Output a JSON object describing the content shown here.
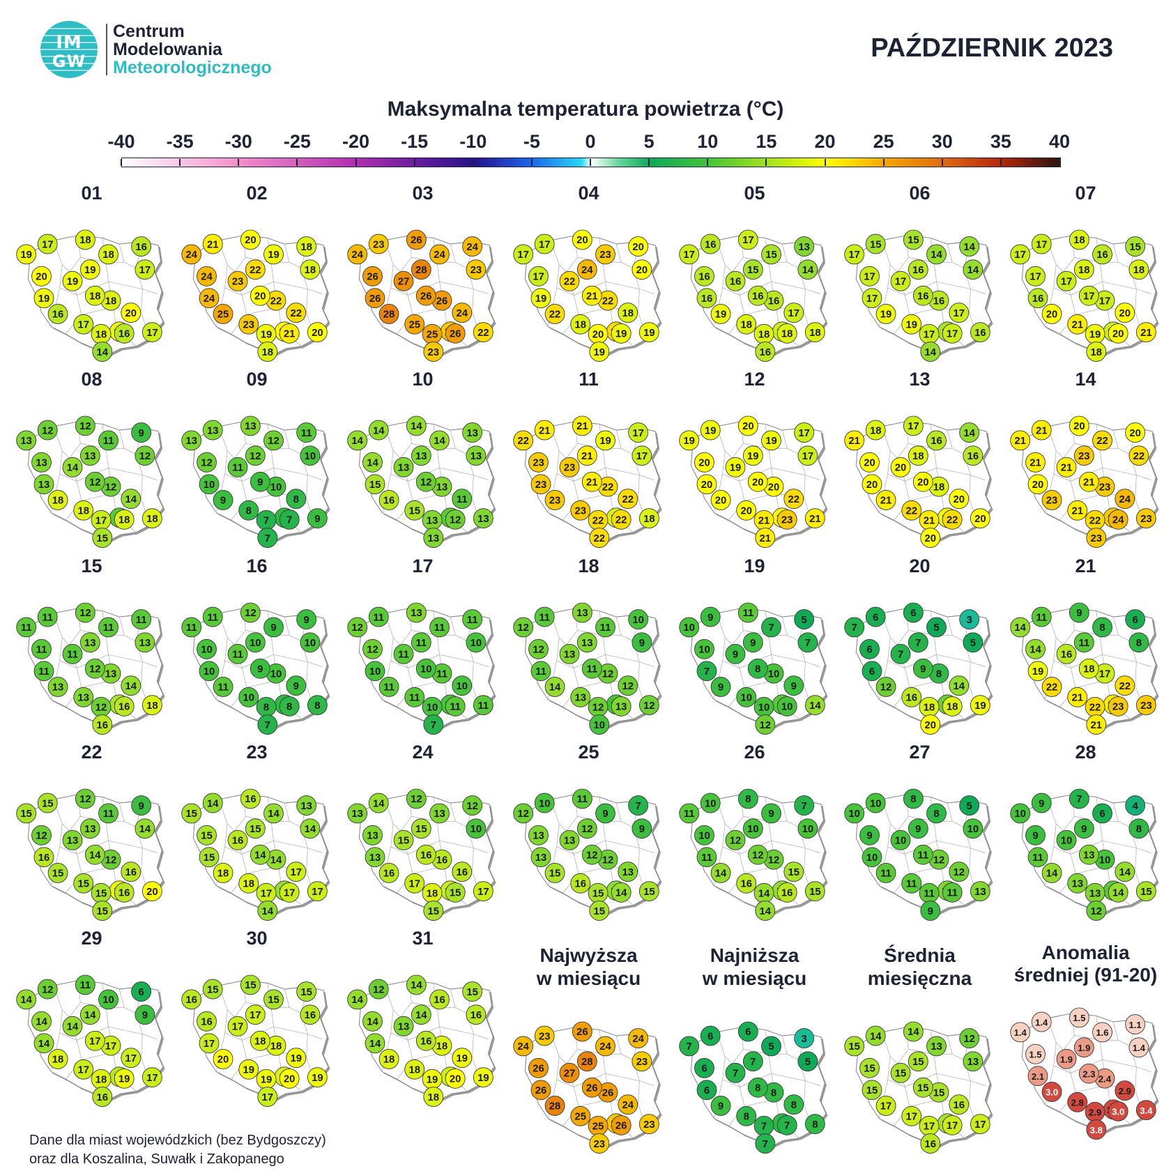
{
  "header": {
    "logo_text_top": "IM",
    "logo_text_bottom": "GW",
    "org_line1": "Centrum",
    "org_line2": "Modelowania",
    "org_line3": "Meteorologicznego",
    "month_title": "PAŹDZIERNIK 2023"
  },
  "scale": {
    "title": "Maksymalna temperatura powietrza (°C)",
    "ticks": [
      "-40",
      "-35",
      "-30",
      "-25",
      "-20",
      "-15",
      "-10",
      "-5",
      "0",
      "5",
      "10",
      "15",
      "20",
      "25",
      "30",
      "35",
      "40"
    ],
    "range": [
      -40,
      40
    ],
    "colors": {
      "-40": "#ffffff",
      "-30": "#f38fca",
      "-20": "#b02eb0",
      "-10": "#26108a",
      "-5": "#1d68ee",
      "0": "#27d8f2",
      "5": "#0fa958",
      "10": "#46c33a",
      "15": "#a8e22a",
      "20": "#ffff00",
      "25": "#f4a800",
      "30": "#e06a12",
      "35": "#b3260b",
      "40": "#2a1510"
    },
    "anomaly_colors": {
      "low": "#f7d1c2",
      "mid": "#eb9a85",
      "high": "#d2493f"
    }
  },
  "days": [
    {
      "label": "01",
      "values": [
        "17",
        "18",
        "16",
        "19",
        "18",
        "17",
        "19",
        "20",
        "19",
        "18",
        "19",
        "18",
        "16",
        "17",
        "20",
        "19",
        "18",
        "16",
        "17",
        "14"
      ]
    },
    {
      "label": "02",
      "values": [
        "21",
        "20",
        "18",
        "24",
        "19",
        "18",
        "22",
        "24",
        "23",
        "22",
        "24",
        "20",
        "25",
        "23",
        "22",
        "20",
        "19",
        "21",
        "20",
        "18"
      ]
    },
    {
      "label": "03",
      "values": [
        "23",
        "26",
        "24",
        "24",
        "24",
        "23",
        "28",
        "26",
        "27",
        "26",
        "26",
        "26",
        "28",
        "25",
        "24",
        "23",
        "25",
        "26",
        "22",
        "23"
      ]
    },
    {
      "label": "04",
      "values": [
        "17",
        "20",
        "20",
        "17",
        "23",
        "20",
        "24",
        "17",
        "22",
        "22",
        "19",
        "21",
        "22",
        "18",
        "18",
        "22",
        "20",
        "19",
        "19",
        "19"
      ]
    },
    {
      "label": "05",
      "values": [
        "16",
        "17",
        "13",
        "17",
        "15",
        "14",
        "15",
        "16",
        "16",
        "16",
        "16",
        "16",
        "19",
        "18",
        "17",
        "17",
        "18",
        "18",
        "18",
        "16"
      ]
    },
    {
      "label": "06",
      "values": [
        "15",
        "15",
        "14",
        "17",
        "14",
        "14",
        "16",
        "17",
        "17",
        "16",
        "17",
        "16",
        "19",
        "19",
        "17",
        "15",
        "17",
        "17",
        "16",
        "14"
      ]
    },
    {
      "label": "07",
      "values": [
        "17",
        "18",
        "15",
        "17",
        "16",
        "18",
        "18",
        "17",
        "17",
        "17",
        "16",
        "17",
        "20",
        "21",
        "20",
        "17",
        "19",
        "20",
        "21",
        "18"
      ]
    },
    {
      "label": "08",
      "values": [
        "12",
        "12",
        "9",
        "13",
        "11",
        "12",
        "13",
        "13",
        "14",
        "12",
        "13",
        "12",
        "18",
        "18",
        "14",
        "11",
        "17",
        "18",
        "18",
        "15"
      ]
    },
    {
      "label": "09",
      "values": [
        "13",
        "13",
        "11",
        "13",
        "12",
        "10",
        "12",
        "12",
        "11",
        "10",
        "10",
        "9",
        "9",
        "8",
        "8",
        "8",
        "7",
        "7",
        "9",
        "7"
      ]
    },
    {
      "label": "10",
      "values": [
        "14",
        "14",
        "13",
        "14",
        "14",
        "13",
        "13",
        "14",
        "13",
        "13",
        "15",
        "12",
        "16",
        "15",
        "11",
        "11",
        "13",
        "12",
        "13",
        "13"
      ]
    },
    {
      "label": "11",
      "values": [
        "21",
        "21",
        "17",
        "22",
        "19",
        "17",
        "21",
        "23",
        "23",
        "22",
        "23",
        "21",
        "23",
        "23",
        "22",
        "18",
        "22",
        "22",
        "18",
        "22"
      ]
    },
    {
      "label": "12",
      "values": [
        "19",
        "20",
        "17",
        "19",
        "19",
        "17",
        "19",
        "20",
        "19",
        "20",
        "20",
        "20",
        "20",
        "20",
        "22",
        "20",
        "21",
        "23",
        "21",
        "21"
      ]
    },
    {
      "label": "13",
      "values": [
        "18",
        "17",
        "14",
        "21",
        "16",
        "16",
        "18",
        "20",
        "20",
        "18",
        "20",
        "20",
        "21",
        "22",
        "20",
        "19",
        "21",
        "22",
        "20",
        "20"
      ]
    },
    {
      "label": "14",
      "values": [
        "21",
        "20",
        "20",
        "21",
        "22",
        "22",
        "23",
        "21",
        "21",
        "23",
        "20",
        "21",
        "23",
        "21",
        "24",
        "23",
        "22",
        "24",
        "23",
        "23"
      ]
    },
    {
      "label": "15",
      "values": [
        "11",
        "12",
        "11",
        "11",
        "11",
        "13",
        "13",
        "11",
        "11",
        "13",
        "11",
        "12",
        "13",
        "13",
        "14",
        "15",
        "12",
        "16",
        "18",
        "16"
      ]
    },
    {
      "label": "16",
      "values": [
        "11",
        "12",
        "9",
        "11",
        "9",
        "10",
        "10",
        "10",
        "11",
        "10",
        "10",
        "9",
        "11",
        "10",
        "9",
        "8",
        "8",
        "8",
        "8",
        "7"
      ]
    },
    {
      "label": "17",
      "values": [
        "11",
        "13",
        "11",
        "12",
        "11",
        "10",
        "11",
        "12",
        "11",
        "11",
        "10",
        "10",
        "11",
        "11",
        "10",
        "10",
        "10",
        "11",
        "11",
        "7"
      ]
    },
    {
      "label": "18",
      "values": [
        "11",
        "13",
        "10",
        "12",
        "11",
        "9",
        "13",
        "12",
        "13",
        "12",
        "11",
        "11",
        "14",
        "13",
        "12",
        "10",
        "12",
        "13",
        "12",
        "10"
      ]
    },
    {
      "label": "19",
      "values": [
        "9",
        "11",
        "5",
        "10",
        "7",
        "7",
        "9",
        "10",
        "9",
        "10",
        "7",
        "8",
        "9",
        "10",
        "9",
        "11",
        "10",
        "10",
        "14",
        "12"
      ]
    },
    {
      "label": "20",
      "values": [
        "6",
        "6",
        "3",
        "7",
        "5",
        "5",
        "7",
        "6",
        "7",
        "8",
        "6",
        "9",
        "12",
        "16",
        "14",
        "12",
        "18",
        "18",
        "19",
        "20"
      ]
    },
    {
      "label": "21",
      "values": [
        "11",
        "9",
        "6",
        "14",
        "8",
        "8",
        "11",
        "14",
        "16",
        "17",
        "19",
        "18",
        "22",
        "21",
        "22",
        "21",
        "22",
        "23",
        "23",
        "21"
      ]
    },
    {
      "label": "22",
      "values": [
        "15",
        "12",
        "9",
        "15",
        "11",
        "14",
        "13",
        "12",
        "13",
        "12",
        "16",
        "14",
        "15",
        "15",
        "16",
        "19",
        "15",
        "16",
        "20",
        "15"
      ]
    },
    {
      "label": "23",
      "values": [
        "14",
        "16",
        "13",
        "15",
        "14",
        "14",
        "15",
        "15",
        "16",
        "14",
        "15",
        "14",
        "18",
        "18",
        "17",
        "14",
        "17",
        "17",
        "17",
        "14"
      ]
    },
    {
      "label": "24",
      "values": [
        "14",
        "12",
        "12",
        "13",
        "13",
        "10",
        "15",
        "13",
        "15",
        "16",
        "13",
        "16",
        "16",
        "17",
        "16",
        "17",
        "18",
        "15",
        "17",
        "15"
      ]
    },
    {
      "label": "25",
      "values": [
        "10",
        "11",
        "7",
        "12",
        "9",
        "9",
        "12",
        "13",
        "13",
        "12",
        "13",
        "12",
        "15",
        "16",
        "13",
        "14",
        "15",
        "14",
        "15",
        "15"
      ]
    },
    {
      "label": "26",
      "values": [
        "10",
        "8",
        "7",
        "11",
        "9",
        "10",
        "10",
        "10",
        "12",
        "12",
        "11",
        "12",
        "14",
        "16",
        "15",
        "14",
        "14",
        "16",
        "15",
        "14"
      ]
    },
    {
      "label": "27",
      "values": [
        "10",
        "8",
        "5",
        "10",
        "8",
        "10",
        "9",
        "9",
        "10",
        "12",
        "10",
        "11",
        "11",
        "11",
        "12",
        "13",
        "11",
        "11",
        "13",
        "9"
      ]
    },
    {
      "label": "28",
      "values": [
        "9",
        "7",
        "4",
        "10",
        "6",
        "8",
        "9",
        "9",
        "10",
        "10",
        "11",
        "13",
        "14",
        "13",
        "14",
        "11",
        "13",
        "14",
        "15",
        "12"
      ]
    },
    {
      "label": "29",
      "values": [
        "12",
        "11",
        "6",
        "14",
        "10",
        "9",
        "14",
        "14",
        "14",
        "17",
        "14",
        "17",
        "18",
        "17",
        "17",
        "16",
        "18",
        "19",
        "17",
        "16"
      ]
    },
    {
      "label": "30",
      "values": [
        "15",
        "15",
        "15",
        "16",
        "15",
        "16",
        "17",
        "16",
        "17",
        "18",
        "17",
        "18",
        "20",
        "19",
        "19",
        "18",
        "19",
        "20",
        "19",
        "17"
      ]
    },
    {
      "label": "31",
      "values": [
        "12",
        "14",
        "15",
        "14",
        "16",
        "16",
        "14",
        "14",
        "13",
        "18",
        "14",
        "16",
        "18",
        "18",
        "19",
        "17",
        "19",
        "20",
        "19",
        "18"
      ]
    }
  ],
  "summaries": [
    {
      "title_line1": "Najwyższa",
      "title_line2": "w miesiącu",
      "kind": "temp",
      "values": [
        "23",
        "26",
        "24",
        "24",
        "24",
        "23",
        "28",
        "26",
        "27",
        "26",
        "26",
        "26",
        "28",
        "25",
        "24",
        "23",
        "25",
        "26",
        "23",
        "23"
      ]
    },
    {
      "title_line1": "Najniższa",
      "title_line2": "w miesiącu",
      "kind": "temp",
      "values": [
        "6",
        "6",
        "3",
        "7",
        "5",
        "5",
        "7",
        "6",
        "7",
        "8",
        "6",
        "8",
        "9",
        "8",
        "8",
        "8",
        "7",
        "7",
        "8",
        "7"
      ]
    },
    {
      "title_line1": "Średnia",
      "title_line2": "miesięczna",
      "kind": "temp",
      "values": [
        "14",
        "14",
        "12",
        "15",
        "13",
        "13",
        "15",
        "15",
        "15",
        "15",
        "15",
        "15",
        "17",
        "17",
        "16",
        "15",
        "17",
        "17",
        "17",
        "16"
      ]
    },
    {
      "title_line1": "Anomalia",
      "title_line2": "średniej (91-20)",
      "kind": "anomaly",
      "values": [
        "1.4",
        "1.5",
        "1.1",
        "1.4",
        "1.6",
        "1.4",
        "1.9",
        "1.5",
        "1.9",
        "2.4",
        "2.1",
        "2.3",
        "3.0",
        "2.8",
        "2.9",
        "2.9",
        "2.9",
        "3.0",
        "3.4",
        "3.8"
      ]
    }
  ],
  "footer": {
    "note_line1": "Dane dla miast wojewódzkich (bez Bydgoszczy)",
    "note_line2": "oraz dla Koszalina, Suwałk i Zakopanego"
  }
}
